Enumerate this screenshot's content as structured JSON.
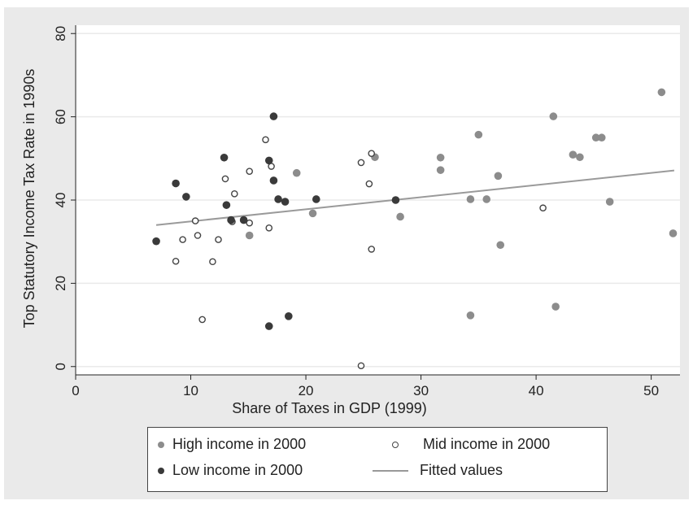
{
  "chart_data": {
    "type": "scatter",
    "xlabel": "Share of Taxes in GDP (1999)",
    "ylabel": "Top Statutory Income Tax Rate in 1990s",
    "xlim": [
      0,
      52.5
    ],
    "ylim": [
      -2,
      82
    ],
    "xticks": [
      0,
      10,
      20,
      30,
      40,
      50
    ],
    "yticks": [
      0,
      20,
      40,
      60,
      80
    ],
    "grid": "horizontal",
    "legend_position": "bottom",
    "series": [
      {
        "name": "High income in 2000",
        "marker": "filled",
        "color": "#8c8c8c",
        "points": [
          [
            15.1,
            31.5
          ],
          [
            19.2,
            46.5
          ],
          [
            20.6,
            36.8
          ],
          [
            26.0,
            50.3
          ],
          [
            28.2,
            36.0
          ],
          [
            31.7,
            50.2
          ],
          [
            31.7,
            47.2
          ],
          [
            34.3,
            40.2
          ],
          [
            35.0,
            55.7
          ],
          [
            35.7,
            40.2
          ],
          [
            36.7,
            45.8
          ],
          [
            36.9,
            29.2
          ],
          [
            41.5,
            60.1
          ],
          [
            43.2,
            50.9
          ],
          [
            43.8,
            50.3
          ],
          [
            45.2,
            55.0
          ],
          [
            45.7,
            55.0
          ],
          [
            46.4,
            39.6
          ],
          [
            34.3,
            12.3
          ],
          [
            41.7,
            14.4
          ],
          [
            50.9,
            65.9
          ],
          [
            51.9,
            32.0
          ]
        ]
      },
      {
        "name": "Mid income in 2000",
        "marker": "hollow",
        "color": "#444444",
        "points": [
          [
            8.7,
            25.3
          ],
          [
            9.3,
            30.5
          ],
          [
            10.4,
            35.0
          ],
          [
            10.6,
            31.5
          ],
          [
            11.0,
            11.3
          ],
          [
            11.9,
            25.2
          ],
          [
            12.4,
            30.5
          ],
          [
            13.0,
            45.1
          ],
          [
            13.6,
            34.8
          ],
          [
            13.8,
            41.5
          ],
          [
            15.1,
            46.9
          ],
          [
            15.1,
            34.5
          ],
          [
            16.5,
            54.5
          ],
          [
            16.8,
            33.3
          ],
          [
            17.0,
            48.1
          ],
          [
            24.8,
            49.0
          ],
          [
            25.5,
            43.9
          ],
          [
            25.7,
            51.2
          ],
          [
            25.7,
            28.2
          ],
          [
            24.8,
            0.2
          ],
          [
            40.6,
            38.1
          ]
        ]
      },
      {
        "name": "Low income in 2000",
        "marker": "filled",
        "color": "#3a3a3a",
        "points": [
          [
            7.0,
            30.1
          ],
          [
            8.7,
            44.0
          ],
          [
            9.6,
            40.8
          ],
          [
            12.9,
            50.2
          ],
          [
            13.1,
            38.8
          ],
          [
            13.5,
            35.2
          ],
          [
            14.6,
            35.2
          ],
          [
            16.8,
            49.5
          ],
          [
            17.2,
            60.1
          ],
          [
            17.2,
            44.7
          ],
          [
            17.6,
            40.2
          ],
          [
            18.2,
            39.6
          ],
          [
            20.9,
            40.2
          ],
          [
            27.8,
            40.0
          ],
          [
            16.8,
            9.7
          ],
          [
            18.5,
            12.1
          ]
        ]
      }
    ],
    "fitted": {
      "name": "Fitted values",
      "color": "#9a9a9a",
      "x": [
        7.0,
        52.0
      ],
      "y": [
        34.0,
        47.1
      ]
    }
  }
}
